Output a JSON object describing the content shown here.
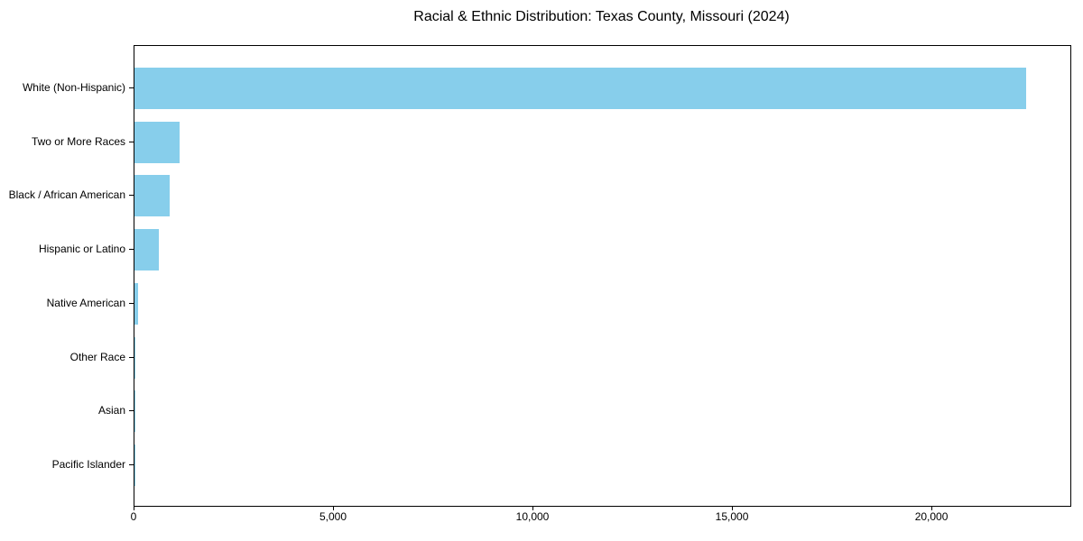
{
  "chart_data": {
    "type": "bar",
    "orientation": "horizontal",
    "title": "Racial & Ethnic Distribution: Texas County, Missouri (2024)",
    "xlabel": "",
    "ylabel": "",
    "categories": [
      "White (Non-Hispanic)",
      "Two or More Races",
      "Black / African American",
      "Hispanic or Latino",
      "Native American",
      "Other Race",
      "Asian",
      "Pacific Islander"
    ],
    "values": [
      22350,
      1130,
      890,
      620,
      100,
      30,
      25,
      10
    ],
    "xlim": [
      0,
      23460
    ],
    "x_ticks": [
      0,
      5000,
      10000,
      15000,
      20000
    ],
    "x_tick_labels": [
      "0",
      "5,000",
      "10,000",
      "15,000",
      "20,000"
    ],
    "bar_color": "#87CEEB",
    "axis_color": "#000000",
    "background_color": "#ffffff",
    "grid": false,
    "legend": null
  }
}
